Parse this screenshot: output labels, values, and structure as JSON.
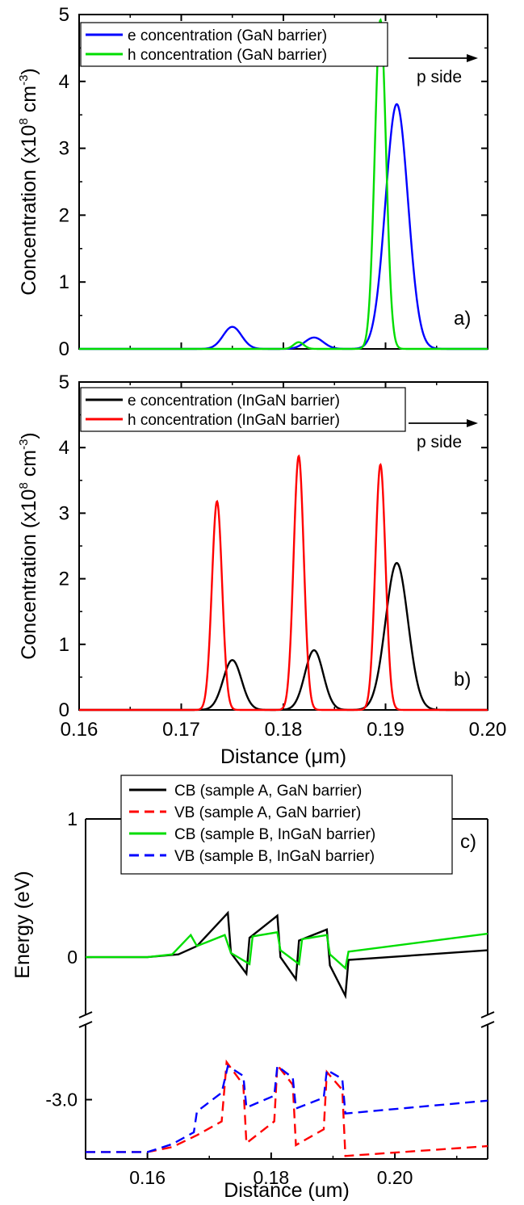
{
  "chart_data": [
    {
      "panel": "a)",
      "type": "line",
      "ylabel": "Concentration (x10",
      "ylabel_sup": "8",
      "ylabel_unit": " cm",
      "ylabel_sup2": "-3",
      "ylabel_close": ")",
      "xlim": [
        0.16,
        0.2
      ],
      "ylim": [
        0,
        5
      ],
      "xticks": [
        "0.16",
        "0.17",
        "0.18",
        "0.19",
        "0.20"
      ],
      "yticks": [
        "0",
        "1",
        "2",
        "3",
        "4",
        "5"
      ],
      "annotation": "p side",
      "legend_position": "top-left",
      "series": [
        {
          "name": "e concentration (GaN barrier)",
          "color": "#0000ff",
          "dash": "solid",
          "peaks": [
            {
              "center": 0.175,
              "height": 0.33,
              "width": 0.0009
            },
            {
              "center": 0.183,
              "height": 0.17,
              "width": 0.0009
            },
            {
              "center": 0.1911,
              "height": 3.66,
              "width": 0.0011
            }
          ]
        },
        {
          "name": "h concentration (GaN barrier)",
          "color": "#00dd00",
          "dash": "solid",
          "peaks": [
            {
              "center": 0.1815,
              "height": 0.1,
              "width": 0.0005
            },
            {
              "center": 0.1895,
              "height": 4.92,
              "width": 0.00055
            }
          ]
        }
      ]
    },
    {
      "panel": "b)",
      "type": "line",
      "xlabel": "Distance (μm)",
      "ylabel": "Concentration (x10",
      "ylabel_sup": "8",
      "ylabel_unit": " cm",
      "ylabel_sup2": "-3",
      "ylabel_close": ")",
      "xlim": [
        0.16,
        0.2
      ],
      "ylim": [
        0,
        5
      ],
      "xticks": [
        "0.16",
        "0.17",
        "0.18",
        "0.19",
        "0.20"
      ],
      "yticks": [
        "0",
        "1",
        "2",
        "3",
        "4",
        "5"
      ],
      "annotation": "p side",
      "legend_position": "top-left",
      "series": [
        {
          "name": "e concentration (InGaN barrier)",
          "color": "#000000",
          "dash": "solid",
          "peaks": [
            {
              "center": 0.175,
              "height": 0.76,
              "width": 0.0009
            },
            {
              "center": 0.183,
              "height": 0.91,
              "width": 0.0009
            },
            {
              "center": 0.1911,
              "height": 2.24,
              "width": 0.0011
            }
          ]
        },
        {
          "name": "h concentration (InGaN barrier)",
          "color": "#ff0000",
          "dash": "solid",
          "peaks": [
            {
              "center": 0.1735,
              "height": 3.18,
              "width": 0.0005
            },
            {
              "center": 0.1815,
              "height": 3.87,
              "width": 0.0005
            },
            {
              "center": 0.1895,
              "height": 3.74,
              "width": 0.0005
            }
          ]
        }
      ]
    },
    {
      "panel": "c)",
      "type": "line",
      "xlabel": "Distance (um)",
      "ylabel": "Energy (eV)",
      "xlim": [
        0.15,
        0.215
      ],
      "xticks": [
        "0.16",
        "0.18",
        "0.20"
      ],
      "yticks": [
        "1",
        "0",
        "-3.0"
      ],
      "broken_y_axis": true,
      "upper_ylim": [
        -0.35,
        1.0
      ],
      "lower_ylim": [
        -3.6,
        -2.35
      ],
      "legend_position": "top-center",
      "series": [
        {
          "name": "CB (sample A, GaN barrier)",
          "color": "#000000",
          "dash": "solid",
          "segment": "upper",
          "x": [
            0.15,
            0.16,
            0.165,
            0.168,
            0.173,
            0.1735,
            0.176,
            0.1765,
            0.181,
            0.1815,
            0.184,
            0.1845,
            0.189,
            0.1895,
            0.192,
            0.1925,
            0.215
          ],
          "y": [
            0,
            0,
            0.02,
            0.08,
            0.32,
            0.03,
            -0.12,
            0.14,
            0.3,
            0.0,
            -0.16,
            0.12,
            0.2,
            -0.06,
            -0.28,
            -0.02,
            0.05
          ]
        },
        {
          "name": "VB (sample A, GaN barrier)",
          "color": "#ff0000",
          "dash": "dashed",
          "segment": "lower",
          "x": [
            0.15,
            0.16,
            0.164,
            0.168,
            0.172,
            0.1728,
            0.1755,
            0.176,
            0.1805,
            0.181,
            0.1835,
            0.184,
            0.1885,
            0.189,
            0.1915,
            0.192,
            0.215
          ],
          "y": [
            -3.53,
            -3.53,
            -3.48,
            -3.36,
            -3.22,
            -2.62,
            -2.85,
            -3.44,
            -3.22,
            -2.65,
            -2.85,
            -3.46,
            -3.3,
            -2.72,
            -2.9,
            -3.57,
            -3.47
          ]
        },
        {
          "name": "CB (sample B, InGaN barrier)",
          "color": "#00dd00",
          "dash": "solid",
          "segment": "upper",
          "x": [
            0.15,
            0.16,
            0.164,
            0.167,
            0.168,
            0.1725,
            0.1735,
            0.1765,
            0.177,
            0.181,
            0.1815,
            0.1845,
            0.185,
            0.189,
            0.1895,
            0.192,
            0.1925,
            0.215
          ],
          "y": [
            0,
            0,
            0.02,
            0.16,
            0.08,
            0.16,
            0.03,
            -0.05,
            0.15,
            0.18,
            0.05,
            -0.05,
            0.13,
            0.16,
            0.02,
            -0.08,
            0.04,
            0.17
          ]
        },
        {
          "name": "VB (sample B, InGaN barrier)",
          "color": "#0000ff",
          "dash": "dashed",
          "segment": "lower",
          "x": [
            0.15,
            0.16,
            0.164,
            0.1675,
            0.168,
            0.172,
            0.173,
            0.1755,
            0.176,
            0.1805,
            0.181,
            0.1835,
            0.184,
            0.1885,
            0.189,
            0.1915,
            0.192,
            0.215
          ],
          "y": [
            -3.53,
            -3.53,
            -3.45,
            -3.33,
            -3.12,
            -2.93,
            -2.66,
            -2.76,
            -3.08,
            -2.96,
            -2.66,
            -2.78,
            -3.09,
            -2.98,
            -2.7,
            -2.79,
            -3.14,
            -3.01
          ]
        }
      ]
    }
  ]
}
